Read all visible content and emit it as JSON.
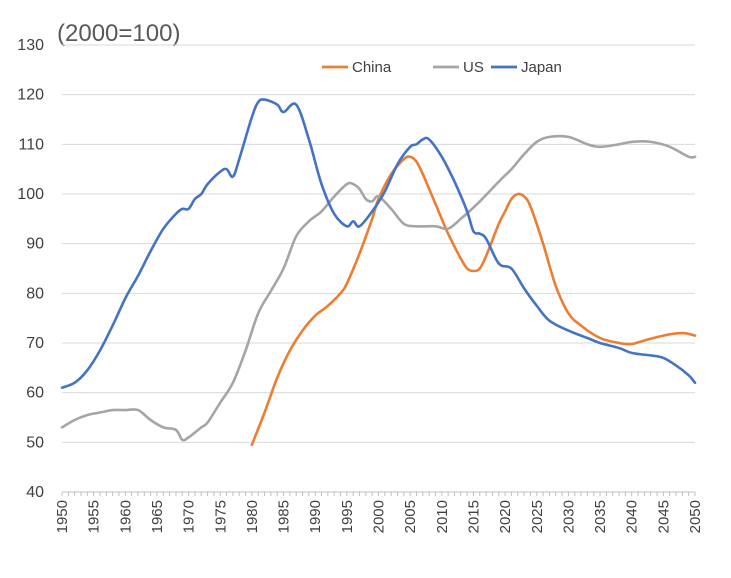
{
  "chart_data": {
    "type": "line",
    "subtitle": "(2000=100)",
    "xlabel": "",
    "ylabel": "",
    "xlim": [
      1950,
      2050
    ],
    "ylim": [
      40,
      130
    ],
    "yticks": [
      40,
      50,
      60,
      70,
      80,
      90,
      100,
      110,
      120,
      130
    ],
    "xticks": [
      1950,
      1955,
      1960,
      1965,
      1970,
      1975,
      1980,
      1985,
      1990,
      1995,
      2000,
      2005,
      2010,
      2015,
      2020,
      2025,
      2030,
      2035,
      2040,
      2045,
      2050
    ],
    "grid": "horizontal",
    "legend_position": "top-right",
    "series": [
      {
        "name": "China",
        "color": "#ED7D31",
        "points": [
          [
            1980,
            49.5
          ],
          [
            1982,
            56
          ],
          [
            1984,
            63
          ],
          [
            1986,
            68.5
          ],
          [
            1988,
            72.5
          ],
          [
            1990,
            75.5
          ],
          [
            1992,
            77.5
          ],
          [
            1994,
            80
          ],
          [
            1995,
            82
          ],
          [
            1997,
            88
          ],
          [
            1999,
            95
          ],
          [
            2000,
            99
          ],
          [
            2002,
            104
          ],
          [
            2004,
            107
          ],
          [
            2005,
            107.5
          ],
          [
            2006,
            106.5
          ],
          [
            2007,
            104
          ],
          [
            2009,
            98
          ],
          [
            2011,
            92
          ],
          [
            2013,
            87
          ],
          [
            2014,
            85
          ],
          [
            2015,
            84.5
          ],
          [
            2016,
            85
          ],
          [
            2017,
            87.5
          ],
          [
            2019,
            94
          ],
          [
            2020,
            96.5
          ],
          [
            2021,
            99
          ],
          [
            2022,
            100
          ],
          [
            2023,
            99.5
          ],
          [
            2024,
            97.5
          ],
          [
            2026,
            90
          ],
          [
            2028,
            81.5
          ],
          [
            2030,
            76
          ],
          [
            2032,
            73.5
          ],
          [
            2035,
            71
          ],
          [
            2038,
            70
          ],
          [
            2040,
            69.8
          ],
          [
            2042,
            70.5
          ],
          [
            2045,
            71.5
          ],
          [
            2048,
            72
          ],
          [
            2050,
            71.5
          ]
        ]
      },
      {
        "name": "US",
        "color": "#A5A5A5",
        "points": [
          [
            1950,
            53
          ],
          [
            1952,
            54.5
          ],
          [
            1954,
            55.5
          ],
          [
            1956,
            56
          ],
          [
            1958,
            56.5
          ],
          [
            1960,
            56.5
          ],
          [
            1962,
            56.5
          ],
          [
            1964,
            54.5
          ],
          [
            1966,
            53
          ],
          [
            1968,
            52.5
          ],
          [
            1969,
            50.5
          ],
          [
            1970,
            51
          ],
          [
            1972,
            53
          ],
          [
            1973,
            54
          ],
          [
            1975,
            58
          ],
          [
            1977,
            62
          ],
          [
            1979,
            68.5
          ],
          [
            1981,
            76
          ],
          [
            1983,
            80.5
          ],
          [
            1985,
            85
          ],
          [
            1987,
            91.5
          ],
          [
            1989,
            94.5
          ],
          [
            1991,
            96.5
          ],
          [
            1993,
            99.5
          ],
          [
            1995,
            102
          ],
          [
            1996,
            102
          ],
          [
            1997,
            101
          ],
          [
            1998,
            99
          ],
          [
            1999,
            98.5
          ],
          [
            2000,
            99.5
          ],
          [
            2002,
            97
          ],
          [
            2004,
            94
          ],
          [
            2006,
            93.5
          ],
          [
            2009,
            93.5
          ],
          [
            2011,
            93
          ],
          [
            2013,
            95
          ],
          [
            2016,
            98.5
          ],
          [
            2019,
            102.5
          ],
          [
            2021,
            105
          ],
          [
            2023,
            108
          ],
          [
            2025,
            110.5
          ],
          [
            2027,
            111.5
          ],
          [
            2030,
            111.5
          ],
          [
            2033,
            110
          ],
          [
            2035,
            109.5
          ],
          [
            2038,
            110
          ],
          [
            2040,
            110.5
          ],
          [
            2043,
            110.5
          ],
          [
            2046,
            109.5
          ],
          [
            2049,
            107.5
          ],
          [
            2050,
            107.5
          ]
        ]
      },
      {
        "name": "Japan",
        "color": "#4472C4",
        "points": [
          [
            1950,
            61
          ],
          [
            1952,
            62
          ],
          [
            1954,
            64.5
          ],
          [
            1956,
            68.5
          ],
          [
            1958,
            73.5
          ],
          [
            1960,
            79
          ],
          [
            1962,
            83.5
          ],
          [
            1964,
            88.5
          ],
          [
            1966,
            93
          ],
          [
            1968,
            96
          ],
          [
            1969,
            97
          ],
          [
            1970,
            97
          ],
          [
            1971,
            99
          ],
          [
            1972,
            100
          ],
          [
            1973,
            102
          ],
          [
            1975,
            104.5
          ],
          [
            1976,
            105
          ],
          [
            1977,
            103.5
          ],
          [
            1978,
            107
          ],
          [
            1980,
            115.5
          ],
          [
            1981,
            118.5
          ],
          [
            1982,
            119
          ],
          [
            1984,
            118
          ],
          [
            1985,
            116.5
          ],
          [
            1987,
            118
          ],
          [
            1989,
            111
          ],
          [
            1991,
            102
          ],
          [
            1993,
            96
          ],
          [
            1995,
            93.5
          ],
          [
            1996,
            94.5
          ],
          [
            1997,
            93.5
          ],
          [
            1999,
            96.5
          ],
          [
            2001,
            100.5
          ],
          [
            2003,
            106
          ],
          [
            2005,
            109.5
          ],
          [
            2006,
            110
          ],
          [
            2007,
            111
          ],
          [
            2008,
            111
          ],
          [
            2010,
            107.5
          ],
          [
            2012,
            102.5
          ],
          [
            2014,
            96.5
          ],
          [
            2015,
            92.5
          ],
          [
            2016,
            92
          ],
          [
            2017,
            91
          ],
          [
            2019,
            86
          ],
          [
            2021,
            85
          ],
          [
            2023,
            81
          ],
          [
            2025,
            77.5
          ],
          [
            2027,
            74.5
          ],
          [
            2030,
            72.5
          ],
          [
            2033,
            71
          ],
          [
            2035,
            70
          ],
          [
            2038,
            69
          ],
          [
            2040,
            68
          ],
          [
            2043,
            67.5
          ],
          [
            2045,
            67
          ],
          [
            2047,
            65.5
          ],
          [
            2049,
            63.5
          ],
          [
            2050,
            62
          ]
        ]
      }
    ]
  }
}
